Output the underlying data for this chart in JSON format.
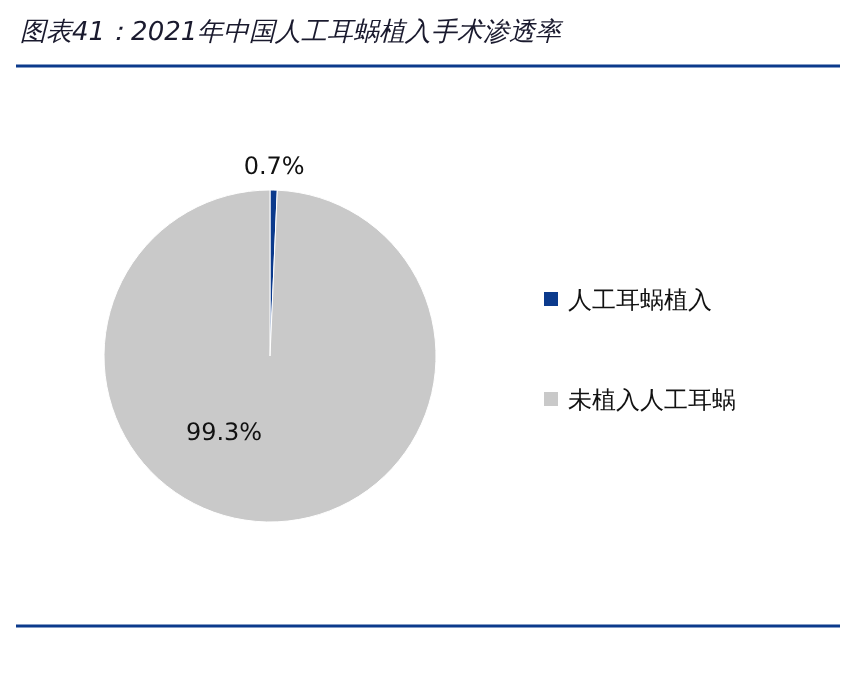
{
  "chart_data": {
    "type": "pie",
    "title": "图表41：2021年中国人工耳蜗植入手术渗透率",
    "categories": [
      "人工耳蜗植入",
      "未植入人工耳蜗"
    ],
    "values": [
      0.7,
      99.3
    ],
    "colors": [
      "#0b3a8c",
      "#c9c9c9"
    ],
    "value_labels": [
      "0.7%",
      "99.3%"
    ],
    "legend": "right"
  }
}
